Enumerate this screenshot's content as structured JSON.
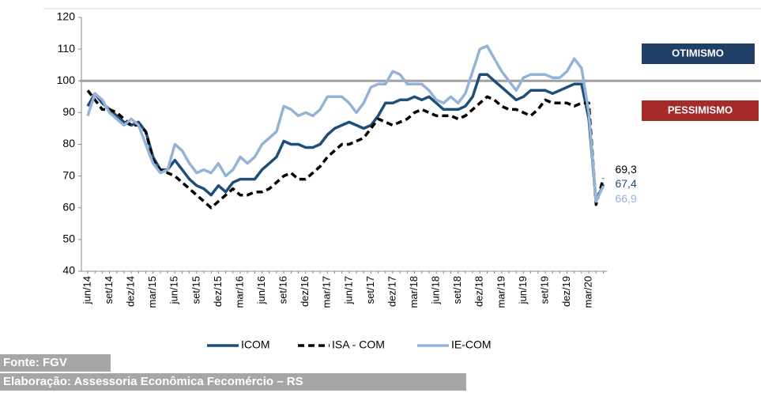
{
  "chart_data": {
    "type": "line",
    "categories": [
      "jun/14",
      null,
      null,
      "set/14",
      null,
      null,
      "dez/14",
      null,
      null,
      "mar/15",
      null,
      null,
      "jun/15",
      null,
      null,
      "set/15",
      null,
      null,
      "dez/15",
      null,
      null,
      "mar/16",
      null,
      null,
      "jun/16",
      null,
      null,
      "set/16",
      null,
      null,
      "dez/16",
      null,
      null,
      "mar/17",
      null,
      null,
      "jun/17",
      null,
      null,
      "set/17",
      null,
      null,
      "dez/17",
      null,
      null,
      "mar/18",
      null,
      null,
      "jun/18",
      null,
      null,
      "set/18",
      null,
      null,
      "dez/18",
      null,
      null,
      "mar/19",
      null,
      null,
      "jun/19",
      null,
      null,
      "set/19",
      null,
      null,
      "dez/19",
      null,
      null,
      "mar/20",
      null,
      null
    ],
    "series": [
      {
        "name": "ICOM",
        "color": "#1f4e79",
        "dash": false,
        "values": [
          92,
          96,
          93,
          91,
          89,
          87,
          86,
          87,
          84,
          76,
          72,
          72,
          75,
          72,
          69,
          67,
          66,
          64,
          67,
          65,
          68,
          69,
          69,
          69,
          72,
          74,
          76,
          81,
          80,
          80,
          79,
          79,
          80,
          83,
          85,
          86,
          87,
          86,
          85,
          86,
          89,
          93,
          93,
          94,
          94,
          95,
          94,
          95,
          93,
          91,
          91,
          91,
          92,
          95,
          102,
          102,
          100,
          98,
          96,
          94,
          95,
          97,
          97,
          97,
          96,
          97,
          98,
          99,
          99,
          88,
          62,
          67.4
        ],
        "value_labels": [
          null,
          null,
          null,
          null,
          null,
          null,
          null,
          null,
          null,
          null,
          null,
          null,
          null,
          null,
          null,
          null,
          null,
          null,
          null,
          null,
          null,
          null,
          null,
          null,
          null,
          null,
          null,
          null,
          null,
          null,
          null,
          null,
          null,
          null,
          null,
          null,
          null,
          null,
          null,
          null,
          null,
          null,
          null,
          null,
          null,
          null,
          null,
          null,
          null,
          null,
          null,
          null,
          null,
          null,
          null,
          null,
          null,
          null,
          null,
          null,
          null,
          null,
          null,
          null,
          null,
          null,
          null,
          null,
          null,
          null,
          null,
          "67,4"
        ]
      },
      {
        "name": "ISA - COM",
        "color": "#000000",
        "dash": true,
        "values": [
          97,
          94,
          91,
          91,
          90,
          88,
          86,
          86,
          84,
          75,
          72,
          71,
          70,
          68,
          66,
          64,
          62,
          60,
          62,
          64,
          66,
          64,
          64,
          65,
          65,
          66,
          68,
          70,
          71,
          69,
          69,
          71,
          73,
          76,
          78,
          80,
          80,
          81,
          82,
          85,
          88,
          87,
          86,
          87,
          88,
          90,
          91,
          90,
          89,
          89,
          89,
          88,
          89,
          91,
          93,
          95,
          94,
          92,
          91,
          91,
          90,
          89,
          91,
          94,
          93,
          93,
          93,
          92,
          93,
          93,
          61,
          69.3
        ],
        "value_labels": [
          null,
          null,
          null,
          null,
          null,
          null,
          null,
          null,
          null,
          null,
          null,
          null,
          null,
          null,
          null,
          null,
          null,
          null,
          null,
          null,
          null,
          null,
          null,
          null,
          null,
          null,
          null,
          null,
          null,
          null,
          null,
          null,
          null,
          null,
          null,
          null,
          null,
          null,
          null,
          null,
          null,
          null,
          null,
          null,
          null,
          null,
          null,
          null,
          null,
          null,
          null,
          null,
          null,
          null,
          null,
          null,
          null,
          null,
          null,
          null,
          null,
          null,
          null,
          null,
          null,
          null,
          null,
          null,
          null,
          null,
          null,
          "69,3"
        ]
      },
      {
        "name": "IE-COM",
        "color": "#95b3d7",
        "dash": false,
        "values": [
          89,
          96,
          94,
          90,
          88,
          86,
          88,
          86,
          80,
          74,
          71,
          72,
          80,
          78,
          74,
          71,
          72,
          71,
          74,
          70,
          72,
          76,
          74,
          76,
          80,
          82,
          84,
          92,
          91,
          89,
          90,
          89,
          91,
          95,
          95,
          95,
          93,
          90,
          93,
          98,
          99,
          99,
          103,
          102,
          99,
          99,
          99,
          97,
          94,
          93,
          95,
          93,
          96,
          103,
          110,
          111,
          107,
          103,
          100,
          97,
          101,
          102,
          102,
          102,
          101,
          101,
          103,
          107,
          104,
          90,
          62,
          66.9
        ],
        "value_labels": [
          null,
          null,
          null,
          null,
          null,
          null,
          null,
          null,
          null,
          null,
          null,
          null,
          null,
          null,
          null,
          null,
          null,
          null,
          null,
          null,
          null,
          null,
          null,
          null,
          null,
          null,
          null,
          null,
          null,
          null,
          null,
          null,
          null,
          null,
          null,
          null,
          null,
          null,
          null,
          null,
          null,
          null,
          null,
          null,
          null,
          null,
          null,
          null,
          null,
          null,
          null,
          null,
          null,
          null,
          null,
          null,
          null,
          null,
          null,
          null,
          null,
          null,
          null,
          null,
          null,
          null,
          null,
          null,
          null,
          null,
          null,
          "66,9"
        ]
      }
    ],
    "ylim": [
      40,
      120
    ],
    "yticks": [
      40,
      50,
      60,
      70,
      80,
      90,
      100,
      110,
      120
    ],
    "reference_line": 100,
    "annotations": {
      "above": "OTIMISMO",
      "below": "PESSIMISMO"
    }
  },
  "footer": {
    "source": "Fonte: FGV",
    "credit": "Elaboração: Assessoria Econômica Fecomércio – RS"
  }
}
